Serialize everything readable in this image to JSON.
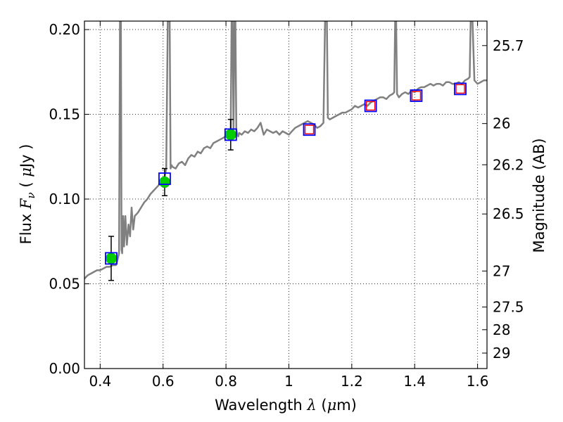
{
  "chart_data": {
    "type": "line",
    "xlabel": {
      "prefix": "Wavelength  ",
      "symbol": "λ",
      "unit_open": " (",
      "unit_mu": "μ",
      "unit_close": "m)"
    },
    "ylabel": {
      "prefix": "Flux  ",
      "symbol": "F",
      "sub": "ν",
      "mid": "  (  ",
      "unit_mu": "μ",
      "unit_close": "Jy  )"
    },
    "ylabel_right": "Magnitude (AB)",
    "xlim": [
      0.35,
      1.63
    ],
    "ylim": [
      0.0,
      0.205
    ],
    "grid": true,
    "x_ticks": [
      {
        "value": 0.4,
        "label": "0.4"
      },
      {
        "value": 0.6,
        "label": "0.6"
      },
      {
        "value": 0.8,
        "label": "0.8"
      },
      {
        "value": 1.0,
        "label": "1"
      },
      {
        "value": 1.2,
        "label": "1.2"
      },
      {
        "value": 1.4,
        "label": "1.4"
      },
      {
        "value": 1.6,
        "label": "1.6"
      }
    ],
    "y_ticks": [
      {
        "value": 0.0,
        "label": "0.00"
      },
      {
        "value": 0.05,
        "label": "0.05"
      },
      {
        "value": 0.1,
        "label": "0.10"
      },
      {
        "value": 0.15,
        "label": "0.15"
      },
      {
        "value": 0.2,
        "label": "0.20"
      }
    ],
    "right_ticks": [
      {
        "mag": 25.7,
        "label": "25.7"
      },
      {
        "mag": 26,
        "label": "26"
      },
      {
        "mag": 26.2,
        "label": "26.2"
      },
      {
        "mag": 26.5,
        "label": "26.5"
      },
      {
        "mag": 27,
        "label": "27"
      },
      {
        "mag": 27.5,
        "label": "27.5"
      },
      {
        "mag": 28,
        "label": "28"
      },
      {
        "mag": 29,
        "label": "29"
      }
    ],
    "model_spectrum": {
      "color": "#808080",
      "x": [
        0.35,
        0.36,
        0.37,
        0.38,
        0.39,
        0.4,
        0.41,
        0.42,
        0.43,
        0.44,
        0.45,
        0.455,
        0.46,
        0.463,
        0.466,
        0.468,
        0.47,
        0.473,
        0.476,
        0.48,
        0.485,
        0.49,
        0.495,
        0.5,
        0.505,
        0.51,
        0.52,
        0.53,
        0.54,
        0.55,
        0.56,
        0.57,
        0.58,
        0.59,
        0.6,
        0.605,
        0.61,
        0.615,
        0.618,
        0.621,
        0.624,
        0.627,
        0.63,
        0.64,
        0.65,
        0.66,
        0.67,
        0.68,
        0.69,
        0.7,
        0.71,
        0.72,
        0.73,
        0.74,
        0.75,
        0.76,
        0.77,
        0.78,
        0.79,
        0.8,
        0.81,
        0.815,
        0.818,
        0.821,
        0.824,
        0.827,
        0.83,
        0.833,
        0.836,
        0.839,
        0.842,
        0.85,
        0.86,
        0.87,
        0.88,
        0.89,
        0.9,
        0.91,
        0.92,
        0.93,
        0.94,
        0.95,
        0.96,
        0.97,
        0.98,
        0.99,
        1.0,
        1.01,
        1.02,
        1.03,
        1.04,
        1.05,
        1.06,
        1.07,
        1.08,
        1.09,
        1.1,
        1.11,
        1.115,
        1.118,
        1.121,
        1.124,
        1.13,
        1.14,
        1.15,
        1.16,
        1.17,
        1.18,
        1.19,
        1.2,
        1.21,
        1.22,
        1.23,
        1.24,
        1.25,
        1.26,
        1.27,
        1.28,
        1.29,
        1.3,
        1.31,
        1.32,
        1.33,
        1.335,
        1.338,
        1.341,
        1.344,
        1.35,
        1.36,
        1.37,
        1.38,
        1.39,
        1.4,
        1.41,
        1.42,
        1.43,
        1.44,
        1.45,
        1.46,
        1.47,
        1.48,
        1.49,
        1.5,
        1.51,
        1.52,
        1.53,
        1.54,
        1.55,
        1.56,
        1.57,
        1.575,
        1.578,
        1.581,
        1.584,
        1.59,
        1.6,
        1.61,
        1.62,
        1.63
      ],
      "y": [
        0.053,
        0.055,
        0.056,
        0.057,
        0.058,
        0.058,
        0.059,
        0.06,
        0.06,
        0.061,
        0.061,
        0.064,
        0.068,
        0.205,
        0.205,
        0.07,
        0.068,
        0.09,
        0.072,
        0.09,
        0.073,
        0.085,
        0.078,
        0.095,
        0.082,
        0.09,
        0.092,
        0.095,
        0.098,
        0.1,
        0.103,
        0.105,
        0.107,
        0.109,
        0.111,
        0.113,
        0.118,
        0.205,
        0.205,
        0.205,
        0.118,
        0.12,
        0.119,
        0.118,
        0.121,
        0.122,
        0.12,
        0.124,
        0.126,
        0.125,
        0.128,
        0.127,
        0.13,
        0.131,
        0.13,
        0.133,
        0.134,
        0.135,
        0.136,
        0.137,
        0.138,
        0.14,
        0.205,
        0.205,
        0.14,
        0.205,
        0.205,
        0.141,
        0.138,
        0.137,
        0.139,
        0.138,
        0.14,
        0.139,
        0.141,
        0.14,
        0.142,
        0.145,
        0.138,
        0.141,
        0.14,
        0.139,
        0.14,
        0.138,
        0.14,
        0.139,
        0.138,
        0.14,
        0.142,
        0.143,
        0.144,
        0.145,
        0.146,
        0.145,
        0.144,
        0.142,
        0.143,
        0.145,
        0.205,
        0.205,
        0.205,
        0.148,
        0.147,
        0.148,
        0.149,
        0.15,
        0.151,
        0.151,
        0.152,
        0.153,
        0.155,
        0.154,
        0.155,
        0.156,
        0.155,
        0.157,
        0.158,
        0.159,
        0.16,
        0.16,
        0.159,
        0.161,
        0.162,
        0.163,
        0.205,
        0.205,
        0.162,
        0.16,
        0.162,
        0.163,
        0.162,
        0.164,
        0.163,
        0.165,
        0.166,
        0.166,
        0.167,
        0.168,
        0.167,
        0.168,
        0.168,
        0.167,
        0.169,
        0.169,
        0.168,
        0.168,
        0.169,
        0.168,
        0.17,
        0.171,
        0.172,
        0.205,
        0.205,
        0.205,
        0.17,
        0.168,
        0.169,
        0.17,
        0.17
      ]
    },
    "observed_points": {
      "color": "#00cc00",
      "points": [
        {
          "x": 0.435,
          "y": 0.065,
          "err": 0.013
        },
        {
          "x": 0.605,
          "y": 0.11,
          "err": 0.008
        },
        {
          "x": 0.815,
          "y": 0.138,
          "err": 0.009
        }
      ]
    },
    "model_photometry": {
      "color": "#0000ff",
      "points": [
        {
          "x": 0.435,
          "y": 0.065
        },
        {
          "x": 0.605,
          "y": 0.112
        },
        {
          "x": 0.815,
          "y": 0.138
        },
        {
          "x": 1.065,
          "y": 0.141
        },
        {
          "x": 1.26,
          "y": 0.155
        },
        {
          "x": 1.405,
          "y": 0.161
        },
        {
          "x": 1.545,
          "y": 0.165
        }
      ]
    },
    "upper_limits": {
      "color": "#ff0000",
      "points": [
        {
          "x": 1.065,
          "y": 0.141
        },
        {
          "x": 1.26,
          "y": 0.155
        },
        {
          "x": 1.405,
          "y": 0.161
        },
        {
          "x": 1.545,
          "y": 0.165
        }
      ]
    }
  }
}
